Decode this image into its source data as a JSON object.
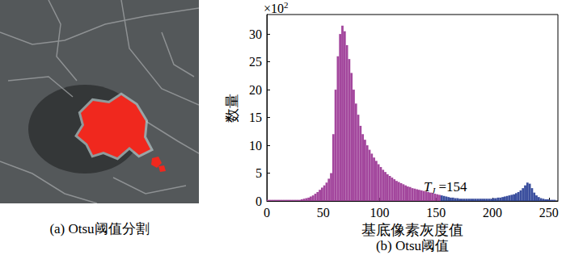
{
  "chart_data": {
    "type": "histogram",
    "title": "(b) Otsu阈值",
    "x_label": "基底像素灰度值",
    "y_label": "数量",
    "y_multiplier": {
      "base": "×10",
      "exponent": "2"
    },
    "bins": [
      0,
      2,
      4,
      6,
      8,
      10,
      12,
      14,
      16,
      18,
      20,
      22,
      24,
      26,
      28,
      30,
      32,
      34,
      36,
      38,
      40,
      42,
      44,
      46,
      48,
      50,
      52,
      54,
      56,
      58,
      60,
      62,
      64,
      66,
      68,
      70,
      72,
      74,
      76,
      78,
      80,
      82,
      84,
      86,
      88,
      90,
      92,
      94,
      96,
      98,
      100,
      102,
      104,
      106,
      108,
      110,
      112,
      114,
      116,
      118,
      120,
      122,
      124,
      126,
      128,
      130,
      132,
      134,
      136,
      138,
      140,
      142,
      144,
      146,
      148,
      150,
      152,
      154,
      156,
      158,
      160,
      162,
      164,
      166,
      168,
      170,
      172,
      174,
      176,
      178,
      180,
      182,
      184,
      186,
      188,
      190,
      192,
      194,
      196,
      198,
      200,
      202,
      204,
      206,
      208,
      210,
      212,
      214,
      216,
      218,
      220,
      222,
      224,
      226,
      228,
      230,
      232,
      234,
      236,
      238,
      240,
      242,
      244,
      246,
      248,
      250,
      252,
      254,
      256
    ],
    "values": [
      0.2,
      0.2,
      0.2,
      0.2,
      0.2,
      0.2,
      0.2,
      0.2,
      0.2,
      0.2,
      0.2,
      0.2,
      0.2,
      0.2,
      0.2,
      0.3,
      0.4,
      0.5,
      0.6,
      0.8,
      1.0,
      1.3,
      1.6,
      2.0,
      2.4,
      2.8,
      3.3,
      4.0,
      5.0,
      12,
      20,
      26,
      30,
      31.5,
      30.5,
      28,
      25.5,
      23,
      20,
      17.5,
      15.5,
      13.5,
      12,
      11,
      10,
      9.2,
      8.5,
      7.8,
      7.2,
      6.6,
      6.1,
      5.6,
      5.2,
      4.8,
      4.5,
      4.2,
      3.9,
      3.6,
      3.4,
      3.2,
      3.0,
      2.8,
      2.6,
      2.5,
      2.3,
      2.2,
      2.1,
      2.0,
      1.9,
      1.8,
      1.7,
      1.6,
      1.5,
      1.4,
      1.3,
      1.2,
      1.1,
      1.0,
      0.9,
      0.8,
      0.7,
      0.6,
      0.6,
      0.5,
      0.5,
      0.4,
      0.4,
      0.4,
      0.4,
      0.4,
      0.4,
      0.4,
      0.4,
      0.4,
      0.4,
      0.4,
      0.4,
      0.4,
      0.4,
      0.4,
      0.5,
      0.5,
      0.6,
      0.6,
      0.7,
      0.8,
      0.9,
      1.0,
      1.1,
      1.2,
      1.4,
      1.6,
      1.9,
      2.3,
      2.8,
      3.3,
      3.1,
      2.3,
      1.5,
      1.0,
      0.7,
      0.5,
      0.4,
      0.3,
      0.3,
      0.2,
      0.2,
      0.2
    ],
    "colors": [
      "#a3479d",
      "#a3479d",
      "#a3479d",
      "#a3479d",
      "#a3479d",
      "#a3479d",
      "#a3479d",
      "#a3479d",
      "#a3479d",
      "#a3479d",
      "#a3479d",
      "#a3479d",
      "#a3479d",
      "#a3479d",
      "#a3479d",
      "#a3479d",
      "#a3479d",
      "#a3479d",
      "#a3479d",
      "#a3479d",
      "#a3479d",
      "#a3479d",
      "#a3479d",
      "#a3479d",
      "#a3479d",
      "#a3479d",
      "#a3479d",
      "#a3479d",
      "#a3479d",
      "#a3479d",
      "#a3479d",
      "#a3479d",
      "#a3479d",
      "#a3479d",
      "#a3479d",
      "#a3479d",
      "#a3479d",
      "#a3479d",
      "#a3479d",
      "#a3479d",
      "#a3479d",
      "#a3479d",
      "#a3479d",
      "#a3479d",
      "#a3479d",
      "#a3479d",
      "#a3479d",
      "#a3479d",
      "#a3479d",
      "#a3479d",
      "#a3479d",
      "#a3479d",
      "#a3479d",
      "#a3479d",
      "#a3479d",
      "#a3479d",
      "#a3479d",
      "#a3479d",
      "#a3479d",
      "#a3479d",
      "#a3479d",
      "#a3479d",
      "#a3479d",
      "#a3479d",
      "#a3479d",
      "#a3479d",
      "#a3479d",
      "#a3479d",
      "#a3479d",
      "#a3479d",
      "#a3479d",
      "#a3479d",
      "#a3479d",
      "#a3479d",
      "#a3479d",
      "#a3479d",
      "#a3479d",
      "#3b4f9e",
      "#3b4f9e",
      "#3b4f9e",
      "#3b4f9e",
      "#3b4f9e",
      "#3b4f9e",
      "#3b4f9e",
      "#3b4f9e",
      "#3b4f9e",
      "#3b4f9e",
      "#3b4f9e",
      "#3b4f9e",
      "#3b4f9e",
      "#3b4f9e",
      "#3b4f9e",
      "#3b4f9e",
      "#3b4f9e",
      "#3b4f9e",
      "#3b4f9e",
      "#3b4f9e",
      "#3b4f9e",
      "#3b4f9e",
      "#3b4f9e",
      "#3b4f9e",
      "#3b4f9e",
      "#3b4f9e",
      "#3b4f9e",
      "#3b4f9e",
      "#3b4f9e",
      "#3b4f9e",
      "#3b4f9e",
      "#3b4f9e",
      "#3b4f9e",
      "#3b4f9e",
      "#3b4f9e",
      "#3b4f9e",
      "#3b4f9e",
      "#3b4f9e",
      "#3b4f9e",
      "#3b4f9e",
      "#3b4f9e",
      "#3b4f9e",
      "#3b4f9e",
      "#3b4f9e",
      "#3b4f9e",
      "#3b4f9e",
      "#3b4f9e",
      "#3b4f9e",
      "#3b4f9e",
      "#3b4f9e",
      "#3b4f9e"
    ],
    "xlim": [
      0,
      258
    ],
    "xticks": [
      0,
      50,
      100,
      150,
      200,
      250
    ],
    "ylim": [
      0,
      33.5
    ],
    "yticks": [
      0,
      5,
      10,
      15,
      20,
      25,
      30
    ],
    "grid": false,
    "annotations": [
      {
        "text": "T",
        "subscript": "J",
        "suffix": " =154",
        "x": 139,
        "y": 2.5
      }
    ]
  },
  "image_panel": {
    "caption": "(a) Otsu阈值分割"
  }
}
